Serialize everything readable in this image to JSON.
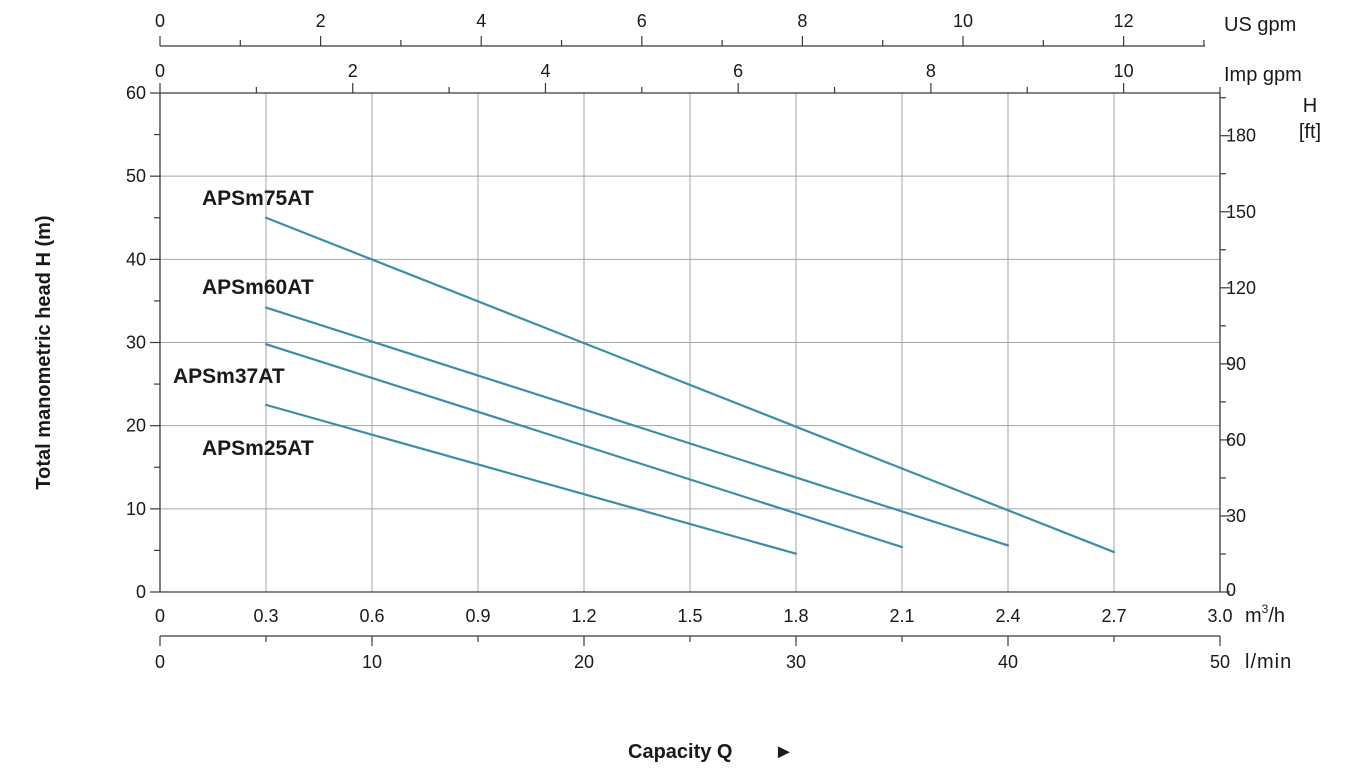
{
  "chart_data": {
    "type": "line",
    "xlabel": "Capacity Q",
    "xlabel_arrow": "►",
    "ylabel": "Total manometric head H (m)",
    "x_unit": "m3/h",
    "xlim": [
      0,
      3.0
    ],
    "ylim": [
      0,
      60
    ],
    "grid": true,
    "line_color": "#3a8fa6",
    "x_ticks": [
      "0",
      "0.3",
      "0.6",
      "0.9",
      "1.2",
      "1.5",
      "1.8",
      "2.1",
      "2.4",
      "2.7",
      "3.0"
    ],
    "y_ticks": [
      "0",
      "10",
      "20",
      "30",
      "40",
      "50",
      "60"
    ],
    "secondary_axes": {
      "us_gpm": {
        "unit": "US gpm",
        "max": 13.2,
        "ticks": [
          "0",
          "2",
          "4",
          "6",
          "8",
          "10",
          "12"
        ]
      },
      "imp_gpm": {
        "unit": "Imp gpm",
        "max": 11.0,
        "ticks": [
          "0",
          "2",
          "4",
          "6",
          "8",
          "10"
        ]
      },
      "l_min": {
        "unit": "l/min",
        "max": 50,
        "ticks": [
          "0",
          "10",
          "20",
          "30",
          "40",
          "50"
        ]
      },
      "h_ft": {
        "unit_line1": "H",
        "unit_line2": "[ft]",
        "max": 196.85,
        "ticks": [
          "0",
          "30",
          "60",
          "90",
          "120",
          "150",
          "180"
        ]
      }
    },
    "series": [
      {
        "name": "APSm75AT",
        "x": [
          0.3,
          2.7
        ],
        "y": [
          45,
          4.8
        ]
      },
      {
        "name": "APSm60AT",
        "x": [
          0.3,
          2.4
        ],
        "y": [
          34.2,
          5.6
        ]
      },
      {
        "name": "APSm37AT",
        "x": [
          0.3,
          2.1
        ],
        "y": [
          29.8,
          5.4
        ]
      },
      {
        "name": "APSm25AT",
        "x": [
          0.3,
          1.8
        ],
        "y": [
          22.5,
          4.6
        ]
      }
    ]
  }
}
